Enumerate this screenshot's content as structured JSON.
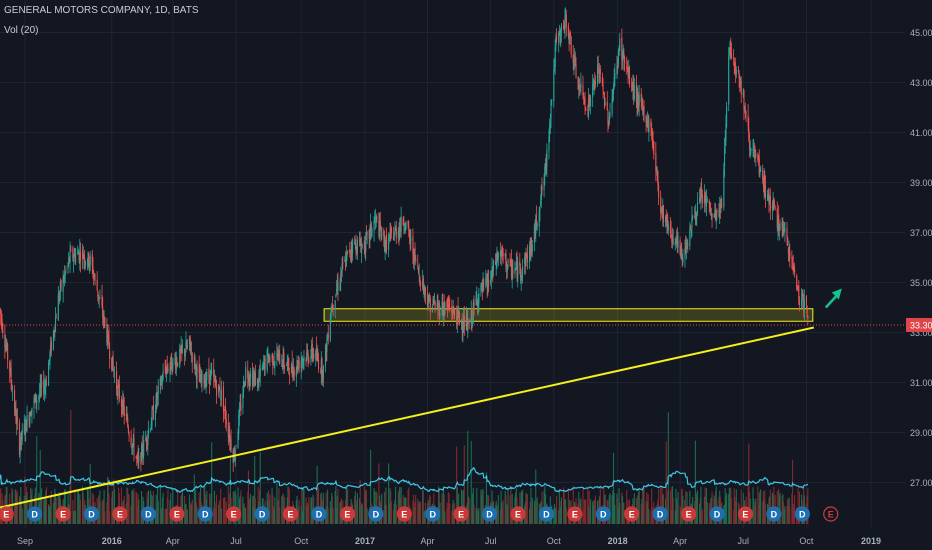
{
  "header": {
    "title": "GENERAL MOTORS COMPANY, 1D, BATS",
    "volume_label": "Vol (20)"
  },
  "colors": {
    "background": "#131722",
    "grid": "#1f2432",
    "axis_text": "#aab0bd",
    "up": "#26a69a",
    "down": "#ef5350",
    "up_volume": "#1f6b4f",
    "down_volume": "#7d2b2d",
    "volume_ma": "#3fc6e3",
    "trendline": "#f5ef1a",
    "price_line": "#e0454a",
    "arrow": "#17c28e",
    "event_dividend": "#1e6fb0",
    "event_earnings": "#ca3a3a"
  },
  "chart_data": {
    "type": "candlestick",
    "title": "GENERAL MOTORS COMPANY, 1D, BATS",
    "ylim": [
      25.3,
      46.3
    ],
    "y_ticks": [
      "45.00",
      "43.00",
      "41.00",
      "39.00",
      "37.00",
      "35.00",
      "33.00",
      "31.00",
      "29.00",
      "27.00"
    ],
    "x_ticks": [
      "Sep",
      "2016",
      "Apr",
      "Jul",
      "Oct",
      "2017",
      "Apr",
      "Jul",
      "Oct",
      "2018",
      "Apr",
      "Jul",
      "Oct",
      "2019"
    ],
    "last_price": "33.30",
    "price_anchors": [
      [
        "2015-07-27",
        33.9
      ],
      [
        "2015-08-10",
        31.5
      ],
      [
        "2015-08-24",
        28.5
      ],
      [
        "2015-09-10",
        30.0
      ],
      [
        "2015-10-01",
        31.0
      ],
      [
        "2015-10-20",
        34.5
      ],
      [
        "2015-11-05",
        36.0
      ],
      [
        "2015-11-20",
        36.2
      ],
      [
        "2015-12-05",
        35.8
      ],
      [
        "2015-12-20",
        34.0
      ],
      [
        "2016-01-10",
        31.0
      ],
      [
        "2016-01-25",
        29.5
      ],
      [
        "2016-02-11",
        27.7
      ],
      [
        "2016-03-01",
        29.5
      ],
      [
        "2016-03-20",
        31.5
      ],
      [
        "2016-04-10",
        32.0
      ],
      [
        "2016-04-25",
        32.5
      ],
      [
        "2016-05-10",
        31.0
      ],
      [
        "2016-05-25",
        31.3
      ],
      [
        "2016-06-10",
        30.5
      ],
      [
        "2016-06-28",
        28.0
      ],
      [
        "2016-07-15",
        31.5
      ],
      [
        "2016-08-01",
        31.0
      ],
      [
        "2016-08-15",
        32.0
      ],
      [
        "2016-09-01",
        32.0
      ],
      [
        "2016-09-20",
        31.5
      ],
      [
        "2016-10-05",
        32.0
      ],
      [
        "2016-10-20",
        32.2
      ],
      [
        "2016-11-04",
        31.5
      ],
      [
        "2016-11-15",
        34.0
      ],
      [
        "2016-12-01",
        35.5
      ],
      [
        "2016-12-15",
        36.5
      ],
      [
        "2017-01-03",
        36.5
      ],
      [
        "2017-01-18",
        37.5
      ],
      [
        "2017-02-01",
        36.5
      ],
      [
        "2017-02-15",
        37.0
      ],
      [
        "2017-03-01",
        37.5
      ],
      [
        "2017-03-20",
        35.5
      ],
      [
        "2017-04-05",
        34.2
      ],
      [
        "2017-04-20",
        34.0
      ],
      [
        "2017-05-05",
        34.0
      ],
      [
        "2017-05-20",
        33.5
      ],
      [
        "2017-06-01",
        33.2
      ],
      [
        "2017-06-15",
        34.5
      ],
      [
        "2017-07-01",
        35.0
      ],
      [
        "2017-07-15",
        36.2
      ],
      [
        "2017-08-01",
        35.5
      ],
      [
        "2017-08-15",
        35.5
      ],
      [
        "2017-09-01",
        36.5
      ],
      [
        "2017-09-20",
        39.5
      ],
      [
        "2017-10-05",
        44.5
      ],
      [
        "2017-10-20",
        45.5
      ],
      [
        "2017-11-05",
        43.0
      ],
      [
        "2017-11-20",
        42.0
      ],
      [
        "2017-12-05",
        43.5
      ],
      [
        "2017-12-20",
        41.5
      ],
      [
        "2018-01-05",
        44.5
      ],
      [
        "2018-01-20",
        43.0
      ],
      [
        "2018-02-05",
        42.0
      ],
      [
        "2018-02-20",
        41.0
      ],
      [
        "2018-03-05",
        38.0
      ],
      [
        "2018-03-20",
        37.0
      ],
      [
        "2018-04-05",
        36.0
      ],
      [
        "2018-04-20",
        37.5
      ],
      [
        "2018-05-05",
        38.5
      ],
      [
        "2018-05-20",
        37.5
      ],
      [
        "2018-06-01",
        38.0
      ],
      [
        "2018-06-12",
        44.5
      ],
      [
        "2018-06-28",
        43.0
      ],
      [
        "2018-07-12",
        40.5
      ],
      [
        "2018-07-25",
        39.5
      ],
      [
        "2018-08-05",
        38.5
      ],
      [
        "2018-08-20",
        37.5
      ],
      [
        "2018-09-05",
        36.5
      ],
      [
        "2018-09-20",
        34.5
      ],
      [
        "2018-10-01",
        34.0
      ],
      [
        "2018-10-03",
        33.3
      ]
    ],
    "annotations": {
      "support_zone": {
        "from": "2016-11-05",
        "to": "2018-10-03",
        "low": 33.45,
        "high": 33.95
      },
      "trendline": {
        "from": [
          "2015-07-27",
          26.0
        ],
        "to": [
          "2018-10-03",
          33.2
        ]
      },
      "arrow": "up"
    },
    "events": [
      "E",
      "D",
      "E",
      "D",
      "E",
      "D",
      "E",
      "D",
      "E",
      "D",
      "E",
      "D",
      "E",
      "D",
      "E",
      "D",
      "E",
      "D",
      "E",
      "D",
      "E",
      "D",
      "E",
      "D",
      "E",
      "D",
      "E",
      "D",
      "D",
      "E"
    ]
  }
}
